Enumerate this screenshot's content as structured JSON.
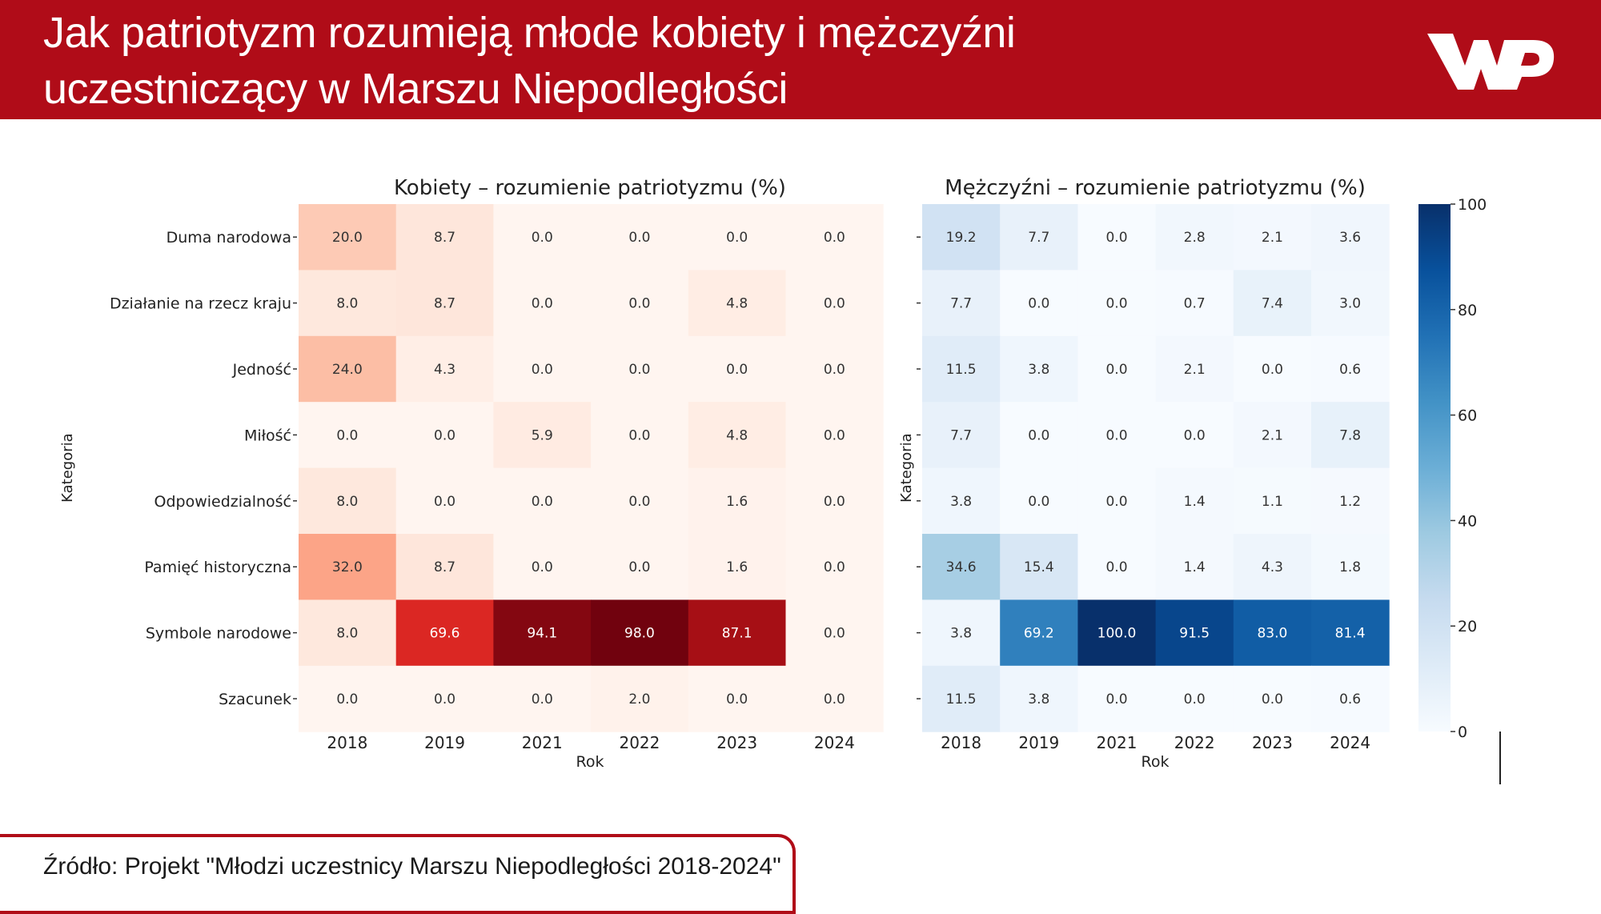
{
  "header": {
    "title_line1": "Jak patriotyzm rozumieją młode kobiety i mężczyźni",
    "title_line2": "uczestniczący w Marszu Niepodległości",
    "logo_text": "WP",
    "background_color": "#b00c18"
  },
  "source": {
    "text": "Źródło: Projekt \"Młodzi uczestnicy Marszu Niepodległości 2018-2024\""
  },
  "chart_data": [
    {
      "type": "heatmap",
      "title": "Kobiety – rozumienie patriotyzmu (%)",
      "xlabel": "Rok",
      "ylabel": "Kategoria",
      "colormap": "Reds",
      "value_range": [
        0,
        100
      ],
      "x": [
        "2018",
        "2019",
        "2021",
        "2022",
        "2023",
        "2024"
      ],
      "y": [
        "Duma narodowa",
        "Działanie na rzecz kraju",
        "Jedność",
        "Miłość",
        "Odpowiedzialność",
        "Pamięć historyczna",
        "Symbole narodowe",
        "Szacunek"
      ],
      "values": [
        [
          20.0,
          8.7,
          0.0,
          0.0,
          0.0,
          0.0
        ],
        [
          8.0,
          8.7,
          0.0,
          0.0,
          4.8,
          0.0
        ],
        [
          24.0,
          4.3,
          0.0,
          0.0,
          0.0,
          0.0
        ],
        [
          0.0,
          0.0,
          5.9,
          0.0,
          4.8,
          0.0
        ],
        [
          8.0,
          0.0,
          0.0,
          0.0,
          1.6,
          0.0
        ],
        [
          32.0,
          8.7,
          0.0,
          0.0,
          1.6,
          0.0
        ],
        [
          8.0,
          69.6,
          94.1,
          98.0,
          87.1,
          0.0
        ],
        [
          0.0,
          0.0,
          0.0,
          2.0,
          0.0,
          0.0
        ]
      ]
    },
    {
      "type": "heatmap",
      "title": "Mężczyźni – rozumienie patriotyzmu (%)",
      "xlabel": "Rok",
      "ylabel": "Kategoria",
      "colormap": "Blues",
      "value_range": [
        0,
        100
      ],
      "x": [
        "2018",
        "2019",
        "2021",
        "2022",
        "2023",
        "2024"
      ],
      "y": [
        "Duma narodowa",
        "Działanie na rzecz kraju",
        "Jedność",
        "Miłość",
        "Odpowiedzialność",
        "Pamięć historyczna",
        "Symbole narodowe",
        "Szacunek"
      ],
      "values": [
        [
          19.2,
          7.7,
          0.0,
          2.8,
          2.1,
          3.6
        ],
        [
          7.7,
          0.0,
          0.0,
          0.7,
          7.4,
          3.0
        ],
        [
          11.5,
          3.8,
          0.0,
          2.1,
          0.0,
          0.6
        ],
        [
          7.7,
          0.0,
          0.0,
          0.0,
          2.1,
          7.8
        ],
        [
          3.8,
          0.0,
          0.0,
          1.4,
          1.1,
          1.2
        ],
        [
          34.6,
          15.4,
          0.0,
          1.4,
          4.3,
          1.8
        ],
        [
          3.8,
          69.2,
          100.0,
          91.5,
          83.0,
          81.4
        ],
        [
          11.5,
          3.8,
          0.0,
          0.0,
          0.0,
          0.6
        ]
      ],
      "colorbar": {
        "ticks": [
          0,
          20,
          40,
          60,
          80,
          100
        ]
      }
    }
  ]
}
